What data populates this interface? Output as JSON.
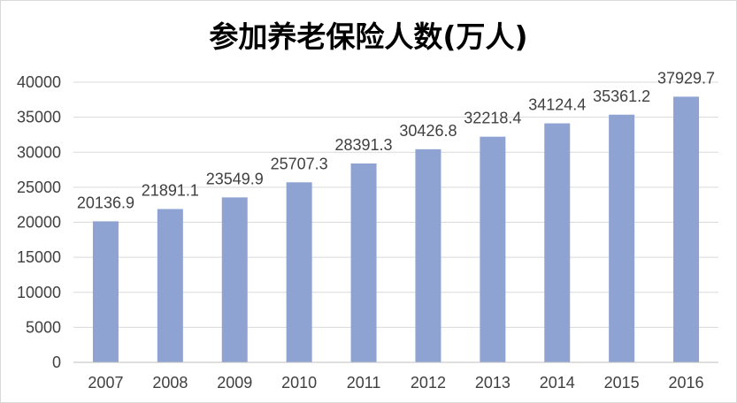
{
  "chart_data": {
    "type": "bar",
    "title": "参加养老保险人数(万人)",
    "categories": [
      "2007",
      "2008",
      "2009",
      "2010",
      "2011",
      "2012",
      "2013",
      "2014",
      "2015",
      "2016"
    ],
    "values": [
      20136.9,
      21891.1,
      23549.9,
      25707.3,
      28391.3,
      30426.8,
      32218.4,
      34124.4,
      35361.2,
      37929.7
    ],
    "data_labels": [
      "20136.9",
      "21891.1",
      "23549.9",
      "25707.3",
      "28391.3",
      "30426.8",
      "32218.4",
      "34124.4",
      "35361.2",
      "37929.7"
    ],
    "y_ticks": [
      "0",
      "5000",
      "10000",
      "15000",
      "20000",
      "25000",
      "30000",
      "35000",
      "40000"
    ],
    "ylim": [
      0,
      40000
    ],
    "xlabel": "",
    "ylabel": "",
    "grid": true,
    "legend": false,
    "bar_color": "#8FA3D3",
    "grid_color": "#d9d9d9"
  }
}
